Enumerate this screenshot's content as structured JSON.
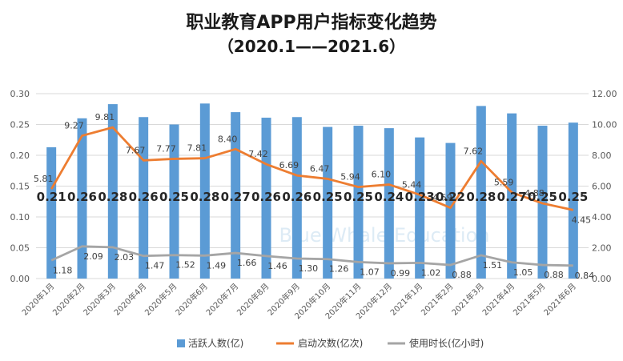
{
  "title": "职业教育APP用户指标变化趋势",
  "subtitle": "（2020.1——2021.6）",
  "watermark": "Blue Whale Education",
  "colors": {
    "bar": "#5b9bd5",
    "launch": "#ed7d31",
    "duration": "#a5a5a5",
    "grid": "#d9d9d9"
  },
  "chart_data": {
    "type": "bar",
    "categories": [
      "2020年1月",
      "2020年2月",
      "2020年3月",
      "2020年4月",
      "2020年5月",
      "2020年6月",
      "2020年7月",
      "2020年8月",
      "2020年9月",
      "2020年10月",
      "2020年11月",
      "2020年12月",
      "2021年1月",
      "2021年2月",
      "2021年3月",
      "2021年4月",
      "2021年5月",
      "2021年6月"
    ],
    "ylim_left": [
      0,
      0.3
    ],
    "yticks_left": [
      "0.00",
      "0.05",
      "0.10",
      "0.15",
      "0.20",
      "0.25",
      "0.30"
    ],
    "ylim_right": [
      0,
      12
    ],
    "yticks_right": [
      "0.00",
      "2.00",
      "4.00",
      "6.00",
      "8.00",
      "10.00",
      "12.00"
    ],
    "grid": true,
    "legend_position": "bottom",
    "series": [
      {
        "name": "活跃人数(亿)",
        "kind": "bar",
        "axis": "left",
        "values": [
          0.213,
          0.26,
          0.283,
          0.262,
          0.25,
          0.284,
          0.27,
          0.261,
          0.262,
          0.246,
          0.248,
          0.244,
          0.229,
          0.22,
          0.28,
          0.268,
          0.248,
          0.253
        ],
        "labels": [
          "0.21",
          "0.26",
          "0.28",
          "0.26",
          "0.25",
          "0.28",
          "0.27",
          "0.26",
          "0.26",
          "0.25",
          "0.25",
          "0.24",
          "0.23",
          "0.22",
          "0.28",
          "0.27",
          "0.25",
          "0.25"
        ]
      },
      {
        "name": "启动次数(亿次)",
        "kind": "line",
        "axis": "right",
        "values": [
          5.81,
          9.27,
          9.81,
          7.67,
          7.77,
          7.81,
          8.4,
          7.42,
          6.69,
          6.47,
          5.94,
          6.1,
          5.44,
          4.59,
          7.62,
          5.59,
          4.88,
          4.45
        ],
        "labels": [
          "5.81",
          "9.27",
          "9.81",
          "7.67",
          "7.77",
          "7.81",
          "8.40",
          "7.42",
          "6.69",
          "6.47",
          "5.94",
          "6.10",
          "5.44",
          "4.59",
          "7.62",
          "5.59",
          "4.88",
          "4.45"
        ]
      },
      {
        "name": "使用时长(亿小时)",
        "kind": "line",
        "axis": "right",
        "values": [
          1.18,
          2.09,
          2.03,
          1.47,
          1.52,
          1.49,
          1.66,
          1.46,
          1.3,
          1.26,
          1.07,
          0.99,
          1.02,
          0.88,
          1.51,
          1.05,
          0.88,
          0.84
        ],
        "labels": [
          "1.18",
          "2.09",
          "2.03",
          "1.47",
          "1.52",
          "1.49",
          "1.66",
          "1.46",
          "1.30",
          "1.26",
          "1.07",
          "0.99",
          "1.02",
          "0.88",
          "1.51",
          "1.05",
          "0.88",
          "0.84"
        ]
      }
    ]
  }
}
